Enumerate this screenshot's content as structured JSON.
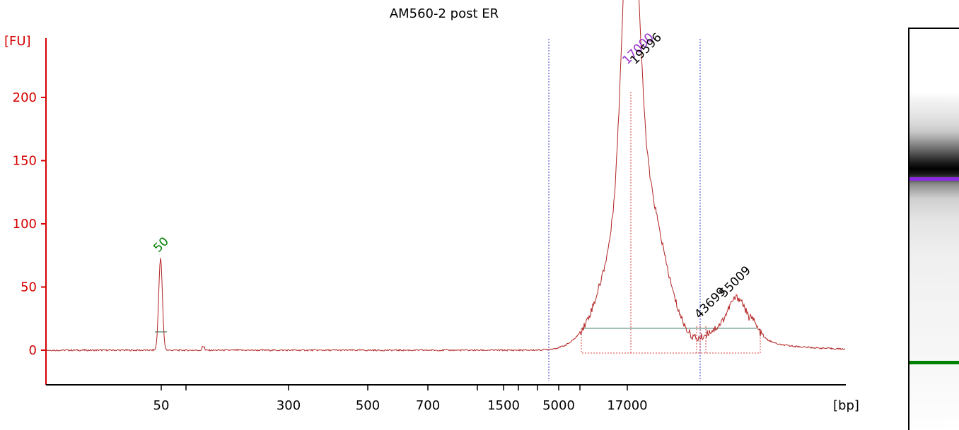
{
  "title": "AM560-2 post ER",
  "chart_data": {
    "type": "line",
    "title": "AM560-2 post ER",
    "ylabel": "[FU]",
    "xlabel": "[bp]",
    "yticks": [
      0,
      50,
      100,
      150,
      200
    ],
    "ylim": [
      -25,
      245
    ],
    "xticks": [
      "50",
      "300",
      "500",
      "700",
      "1500",
      "5000",
      "17000"
    ],
    "grid": false,
    "series": [
      {
        "peaks": [
          {
            "x_bp": 50,
            "y": 73
          },
          {
            "x_bp": 17000,
            "y": 222
          },
          {
            "x_bp": 19596,
            "y": 221
          },
          {
            "x_bp": 43699,
            "y": 22
          },
          {
            "x_bp": 55009,
            "y": 43
          }
        ]
      }
    ],
    "peak_labels": [
      {
        "text": "50",
        "color": "#008000"
      },
      {
        "text": "17000",
        "color": "#9933cc"
      },
      {
        "text": "19596",
        "color": "#000000"
      },
      {
        "text": "43699",
        "color": "#000000"
      },
      {
        "text": "55009",
        "color": "#000000"
      }
    ],
    "region_markers": [
      "blue-dotted-left",
      "blue-dotted-right"
    ]
  },
  "colors": {
    "trace": "#b22222",
    "axis": "#d40000",
    "region_line": "#6a6ad8",
    "baseline": "#6a9a8a",
    "ladder_marker": "#008000",
    "upper_marker": "#8a2be2"
  },
  "gel": {
    "lower_marker_color": "#008000",
    "upper_marker_color": "#8a2be2"
  }
}
